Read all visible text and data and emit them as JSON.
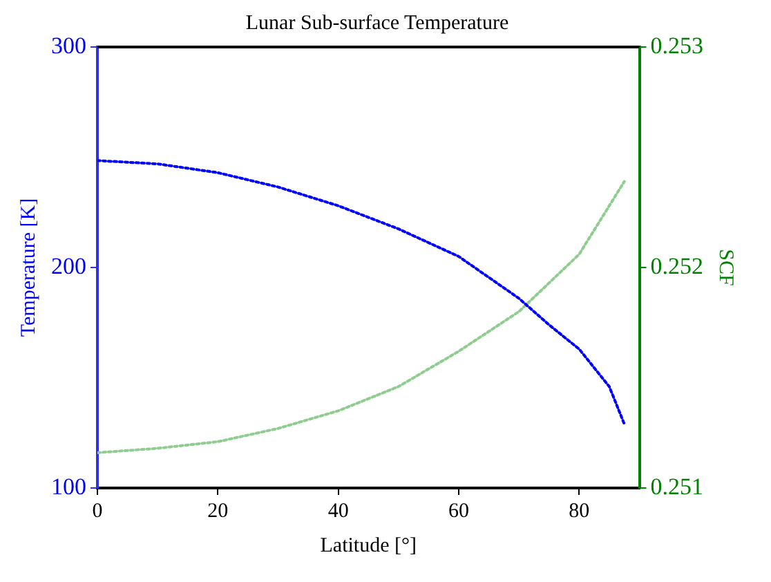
{
  "chart_data": {
    "type": "line",
    "title": "Lunar Sub-surface Temperature",
    "xlabel": "Latitude [°]",
    "ylabel": "Temperature [K]",
    "y2label": "SCF",
    "xlim": [
      0,
      90
    ],
    "xticks": [
      0,
      20,
      40,
      60,
      80
    ],
    "ylim": [
      100,
      300
    ],
    "yticks": [
      100,
      200,
      300
    ],
    "y2lim": [
      0.251,
      0.253
    ],
    "y2ticks": [
      0.251,
      0.252,
      0.253
    ],
    "grid": false,
    "legend": false,
    "marker": "none",
    "line_style": "dotted",
    "series": [
      {
        "color": "#0000ff",
        "x": [
          0,
          10,
          20,
          30,
          40,
          50,
          60,
          70,
          75,
          80,
          85,
          87.5
        ],
        "values": [
          248.5,
          247,
          243,
          236.5,
          228,
          217.5,
          205,
          186,
          174,
          163,
          146,
          129
        ]
      },
      {
        "color": "#8fcc8f",
        "axis": "y2",
        "x": [
          0,
          10,
          20,
          30,
          40,
          50,
          60,
          70,
          80,
          87.5
        ],
        "values": [
          0.25116,
          0.25118,
          0.25121,
          0.25127,
          0.25135,
          0.25146,
          0.25162,
          0.2518,
          0.25206,
          0.25239
        ]
      }
    ]
  }
}
